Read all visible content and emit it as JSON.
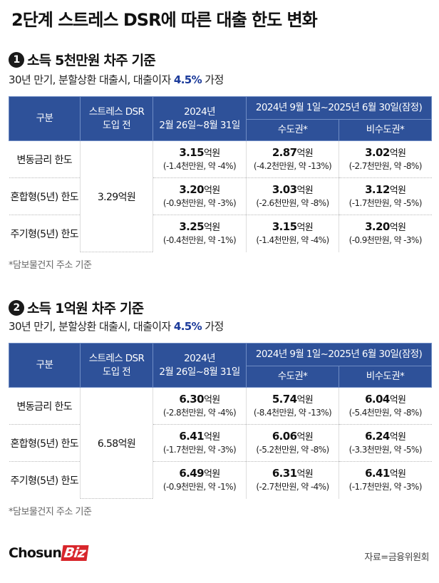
{
  "title": "2단계 스트레스 DSR에 따른 대출 한도 변화",
  "headers": {
    "category": "구분",
    "before_line1": "스트레스 DSR",
    "before_line2": "도입 전",
    "period1_line1": "2024년",
    "period1_line2": "2월 26일~8월 31일",
    "period2": "2024년 9월 1일~2025년 6월 30일(잠정)",
    "capital": "수도권*",
    "noncapital": "비수도권*"
  },
  "sections": [
    {
      "number": "1",
      "heading": "소득 5천만원 차주 기준",
      "sub_prefix": "30년 만기, 분할상환 대출시, 대출이자 ",
      "rate": "4.5%",
      "sub_suffix": " 가정",
      "base_value": "3.29억원",
      "rows": [
        {
          "label": "변동금리 한도",
          "p1": "3.15",
          "p1_sub": "(-1.4천만원, 약 -4%)",
          "cap": "2.87",
          "cap_sub": "(-4.2천만원, 약 -13%)",
          "non": "3.02",
          "non_sub": "(-2.7천만원, 약 -8%)"
        },
        {
          "label": "혼합형(5년) 한도",
          "p1": "3.20",
          "p1_sub": "(-0.9천만원, 약 -3%)",
          "cap": "3.03",
          "cap_sub": "(-2.6천만원, 약 -8%)",
          "non": "3.12",
          "non_sub": "(-1.7천만원, 약 -5%)"
        },
        {
          "label": "주기형(5년) 한도",
          "p1": "3.25",
          "p1_sub": "(-0.4천만원, 약 -1%)",
          "cap": "3.15",
          "cap_sub": "(-1.4천만원, 약 -4%)",
          "non": "3.20",
          "non_sub": "(-0.9천만원, 약 -3%)"
        }
      ],
      "note": "*담보물건지 주소 기준"
    },
    {
      "number": "2",
      "heading": "소득 1억원 차주 기준",
      "sub_prefix": "30년 만기, 분할상환 대출시, 대출이자 ",
      "rate": "4.5%",
      "sub_suffix": " 가정",
      "base_value": "6.58억원",
      "rows": [
        {
          "label": "변동금리 한도",
          "p1": "6.30",
          "p1_sub": "(-2.8천만원, 약 -4%)",
          "cap": "5.74",
          "cap_sub": "(-8.4천만원, 약 -13%)",
          "non": "6.04",
          "non_sub": "(-5.4천만원, 약 -8%)"
        },
        {
          "label": "혼합형(5년) 한도",
          "p1": "6.41",
          "p1_sub": "(-1.7천만원, 약 -3%)",
          "cap": "6.06",
          "cap_sub": "(-5.2천만원, 약 -8%)",
          "non": "6.24",
          "non_sub": "(-3.3천만원, 약 -5%)"
        },
        {
          "label": "주기형(5년) 한도",
          "p1": "6.49",
          "p1_sub": "(-0.9천만원, 약 -1%)",
          "cap": "6.31",
          "cap_sub": "(-2.7천만원, 약 -4%)",
          "non": "6.41",
          "non_sub": "(-1.7천만원, 약 -3%)"
        }
      ],
      "note": "*담보물건지 주소 기준"
    }
  ],
  "unit": "억원",
  "logo": {
    "chosun": "Chosun",
    "biz": "Biz"
  },
  "source": "자료=금융위원회",
  "colors": {
    "header_bg": "#2e5199",
    "rate": "#1b3a9a",
    "logo_biz": "#d8262b"
  }
}
